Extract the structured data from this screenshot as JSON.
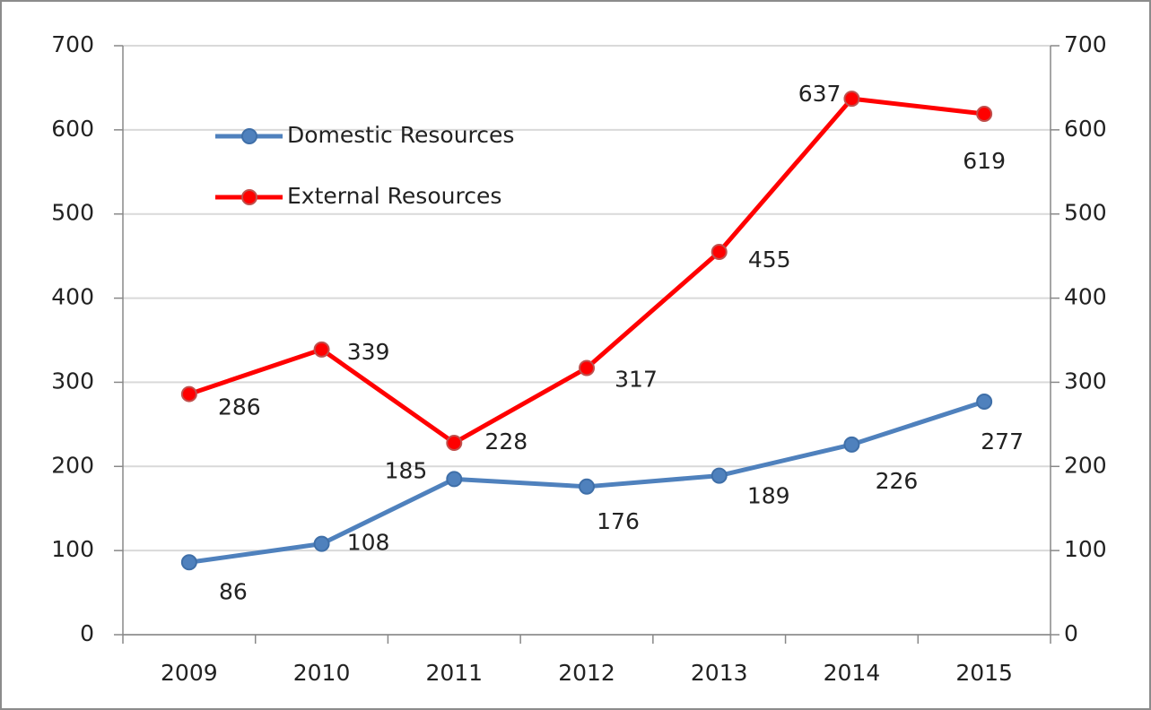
{
  "chart_data": {
    "type": "line",
    "categories": [
      "2009",
      "2010",
      "2011",
      "2012",
      "2013",
      "2014",
      "2015"
    ],
    "series": [
      {
        "name": "Domestic Resources",
        "color": "#4f81bd",
        "values": [
          86,
          108,
          185,
          176,
          189,
          226,
          277
        ]
      },
      {
        "name": "External Resources",
        "color": "#ff0000",
        "axis": "y2",
        "values": [
          286,
          339,
          228,
          317,
          455,
          637,
          619
        ]
      }
    ],
    "ylim": [
      0,
      700
    ],
    "yticks": [
      0,
      100,
      200,
      300,
      400,
      500,
      600,
      700
    ],
    "y2lim": [
      0,
      700
    ],
    "y2ticks": [
      0,
      100,
      200,
      300,
      400,
      500,
      600,
      700
    ],
    "grid": true,
    "legend": "upper left"
  }
}
